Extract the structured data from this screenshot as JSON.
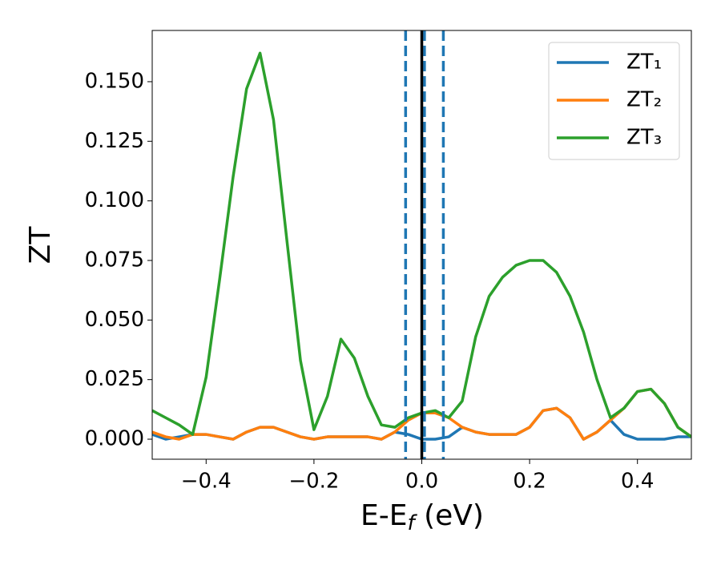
{
  "chart_data": {
    "type": "line",
    "x_label": [
      "E-E",
      "f",
      " (eV)"
    ],
    "y_label": "ZT",
    "x": [
      -0.5,
      -0.475,
      -0.45,
      -0.425,
      -0.4,
      -0.375,
      -0.35,
      -0.325,
      -0.3,
      -0.275,
      -0.25,
      -0.225,
      -0.2,
      -0.175,
      -0.15,
      -0.125,
      -0.1,
      -0.075,
      -0.05,
      -0.025,
      0,
      0.025,
      0.05,
      0.075,
      0.1,
      0.125,
      0.15,
      0.175,
      0.2,
      0.225,
      0.25,
      0.275,
      0.3,
      0.325,
      0.35,
      0.375,
      0.4,
      0.425,
      0.45,
      0.475,
      0.5
    ],
    "series": [
      {
        "name": "ZT₁",
        "color": "#1f77b4",
        "values": [
          0.002,
          0.0,
          0.001,
          0.002,
          0.002,
          0.001,
          0.0,
          0.003,
          0.005,
          0.005,
          0.003,
          0.001,
          0.0,
          0.001,
          0.001,
          0.001,
          0.001,
          0.0,
          0.003,
          0.002,
          0.0,
          0.0,
          0.001,
          0.005,
          0.003,
          0.002,
          0.002,
          0.002,
          0.005,
          0.012,
          0.013,
          0.009,
          0.0,
          0.003,
          0.008,
          0.002,
          0.0,
          0.0,
          0.0,
          0.001,
          0.001
        ]
      },
      {
        "name": "ZT₂",
        "color": "#ff7f0e",
        "values": [
          0.003,
          0.001,
          0.0,
          0.002,
          0.002,
          0.001,
          0.0,
          0.003,
          0.005,
          0.005,
          0.003,
          0.001,
          0.0,
          0.001,
          0.001,
          0.001,
          0.001,
          0.0,
          0.003,
          0.008,
          0.011,
          0.011,
          0.009,
          0.005,
          0.003,
          0.002,
          0.002,
          0.002,
          0.005,
          0.012,
          0.013,
          0.009,
          0.0,
          0.003,
          0.008,
          0.013,
          0.02,
          0.021,
          0.015,
          0.005,
          0.001
        ]
      },
      {
        "name": "ZT₃",
        "color": "#2ca02c",
        "values": [
          0.012,
          0.009,
          0.006,
          0.002,
          0.026,
          0.067,
          0.11,
          0.147,
          0.162,
          0.134,
          0.083,
          0.033,
          0.004,
          0.018,
          0.042,
          0.034,
          0.018,
          0.006,
          0.005,
          0.009,
          0.011,
          0.012,
          0.009,
          0.016,
          0.043,
          0.06,
          0.068,
          0.073,
          0.075,
          0.075,
          0.07,
          0.06,
          0.045,
          0.025,
          0.009,
          0.013,
          0.02,
          0.021,
          0.015,
          0.005,
          0.001
        ]
      }
    ],
    "vlines": [
      {
        "x": -0.03,
        "color": "#1f77b4",
        "style": "dashed"
      },
      {
        "x": 0.005,
        "color": "#1f77b4",
        "style": "dashed"
      },
      {
        "x": 0.04,
        "color": "#1f77b4",
        "style": "dashed"
      },
      {
        "x": 0,
        "color": "#000000",
        "style": "solid"
      }
    ],
    "xlim": [
      -0.5,
      0.5
    ],
    "xticks": [
      {
        "value": -0.4,
        "label": "−0.4"
      },
      {
        "value": -0.2,
        "label": "−0.2"
      },
      {
        "value": 0,
        "label": "0.0"
      },
      {
        "value": 0.2,
        "label": "0.2"
      },
      {
        "value": 0.4,
        "label": "0.4"
      }
    ],
    "ylim": [
      -0.0084,
      0.1715
    ],
    "yticks": [
      {
        "value": 0,
        "label": "0.000"
      },
      {
        "value": 0.025,
        "label": "0.025"
      },
      {
        "value": 0.05,
        "label": "0.050"
      },
      {
        "value": 0.075,
        "label": "0.075"
      },
      {
        "value": 0.1,
        "label": "0.100"
      },
      {
        "value": 0.125,
        "label": "0.125"
      },
      {
        "value": 0.15,
        "label": "0.150"
      }
    ],
    "legend": "upper right",
    "grid": false
  }
}
